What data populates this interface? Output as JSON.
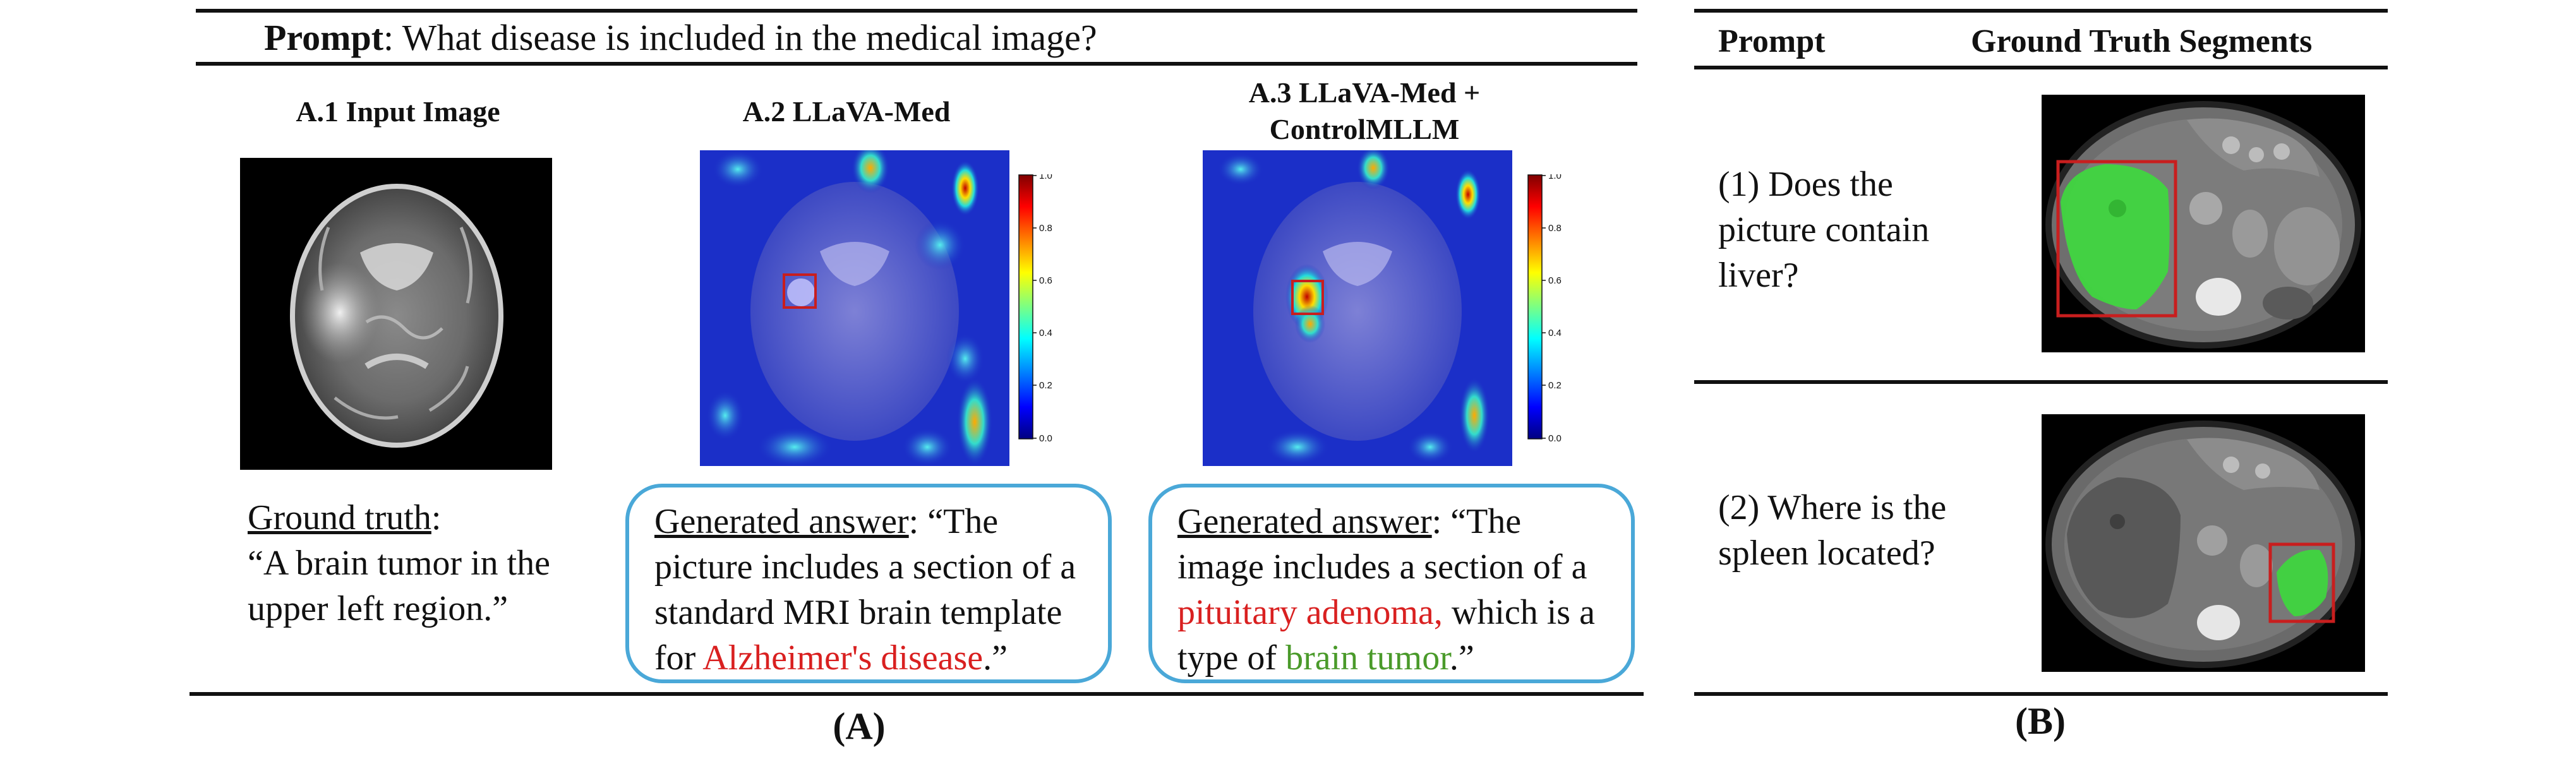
{
  "panel_a": {
    "prompt_label": "Prompt",
    "prompt_text": ": What disease is included in the medical image?",
    "col1_title": "A.1 Input Image",
    "col2_title": "A.2 LLaVA-Med",
    "col3_title_line1": "A.3 LLaVA-Med +",
    "col3_title_line2": "ControlMLLM",
    "ground_truth_label": "Ground truth",
    "ground_truth_sep": ":",
    "ground_truth_text": "“A brain tumor in the upper left region.”",
    "answer2": {
      "label": "Generated answer",
      "pre": ": “The picture includes a section of a standard MRI brain template for ",
      "highlight": "Alzheimer's disease",
      "post": ".”"
    },
    "answer3": {
      "label": "Generated answer",
      "pre": ": “The image includes a section of a ",
      "highlight_red": "pituitary adenoma,",
      "mid": " which is a type of ",
      "highlight_green": "brain tumor",
      "post": ".”"
    },
    "caption": "(A)",
    "colorbar_ticks": [
      "1.0",
      "0.8",
      "0.6",
      "0.4",
      "0.2",
      "0.0"
    ]
  },
  "panel_b": {
    "header_prompt": "Prompt",
    "header_segments": "Ground Truth Segments",
    "q1": "(1) Does the picture contain liver?",
    "q2": "(2) Where is the spleen located?",
    "caption": "(B)"
  },
  "colors": {
    "box_border": "#4aa8d8",
    "bbox_red": "#c81e1e",
    "text_red": "#d92020",
    "text_green": "#4a9a2a",
    "segment_green": "#3ed83e"
  }
}
